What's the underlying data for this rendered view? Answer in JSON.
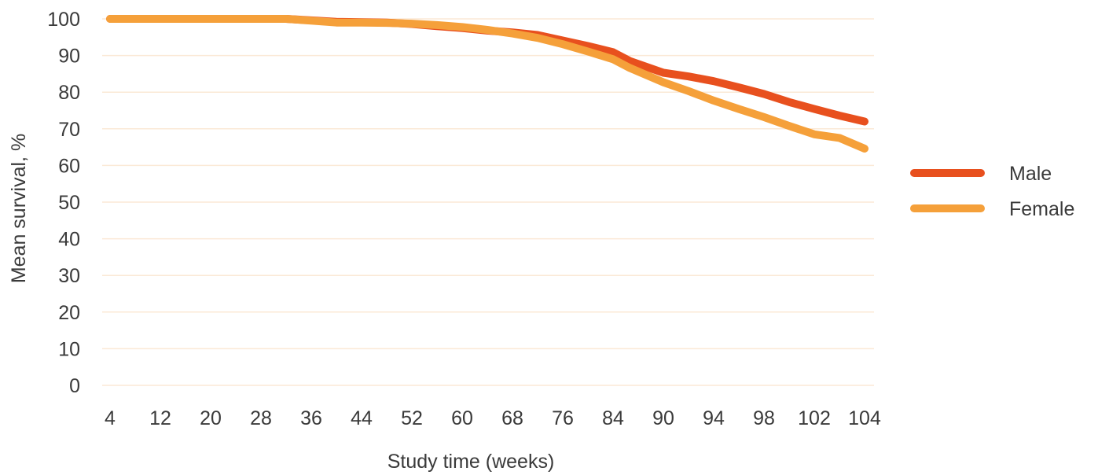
{
  "chart_data": {
    "type": "line",
    "title": "",
    "xlabel": "Study time (weeks)",
    "ylabel": "Mean survival, %",
    "categories": [
      "4",
      "12",
      "20",
      "28",
      "36",
      "44",
      "52",
      "60",
      "68",
      "76",
      "84",
      "90",
      "94",
      "98",
      "102",
      "104"
    ],
    "ylim": [
      0,
      100
    ],
    "yticks": [
      0,
      10,
      20,
      30,
      40,
      50,
      60,
      70,
      80,
      90,
      100
    ],
    "grid": true,
    "legend_position": "right",
    "series": [
      {
        "name": "Male",
        "color": "#e8501e",
        "x": [
          4,
          8,
          12,
          16,
          20,
          24,
          28,
          32,
          36,
          40,
          44,
          48,
          52,
          56,
          60,
          64,
          68,
          72,
          76,
          80,
          84,
          86,
          90,
          92,
          94,
          96,
          98,
          100,
          102,
          103,
          104
        ],
        "values": [
          100,
          100,
          100,
          100,
          100,
          100,
          100,
          100,
          99.6,
          99.2,
          99.1,
          99.0,
          98.6,
          98.0,
          97.5,
          96.8,
          96.3,
          95.6,
          94.1,
          92.6,
          90.9,
          88.5,
          85.3,
          84.3,
          83.0,
          81.3,
          79.5,
          77.3,
          75.4,
          73.6,
          72.0
        ]
      },
      {
        "name": "Female",
        "color": "#f5a03a",
        "x": [
          4,
          8,
          12,
          16,
          20,
          24,
          28,
          32,
          36,
          40,
          44,
          48,
          52,
          56,
          60,
          64,
          68,
          72,
          76,
          80,
          84,
          86,
          90,
          92,
          94,
          96,
          98,
          100,
          102,
          103,
          104
        ],
        "values": [
          100,
          100,
          100,
          100,
          100,
          100,
          100,
          100,
          99.5,
          99.0,
          99.0,
          98.9,
          98.7,
          98.3,
          97.8,
          97.0,
          96.0,
          94.8,
          93.1,
          91.1,
          89.0,
          86.6,
          82.7,
          80.3,
          77.7,
          75.4,
          73.2,
          70.8,
          68.5,
          67.5,
          64.6
        ]
      }
    ]
  }
}
